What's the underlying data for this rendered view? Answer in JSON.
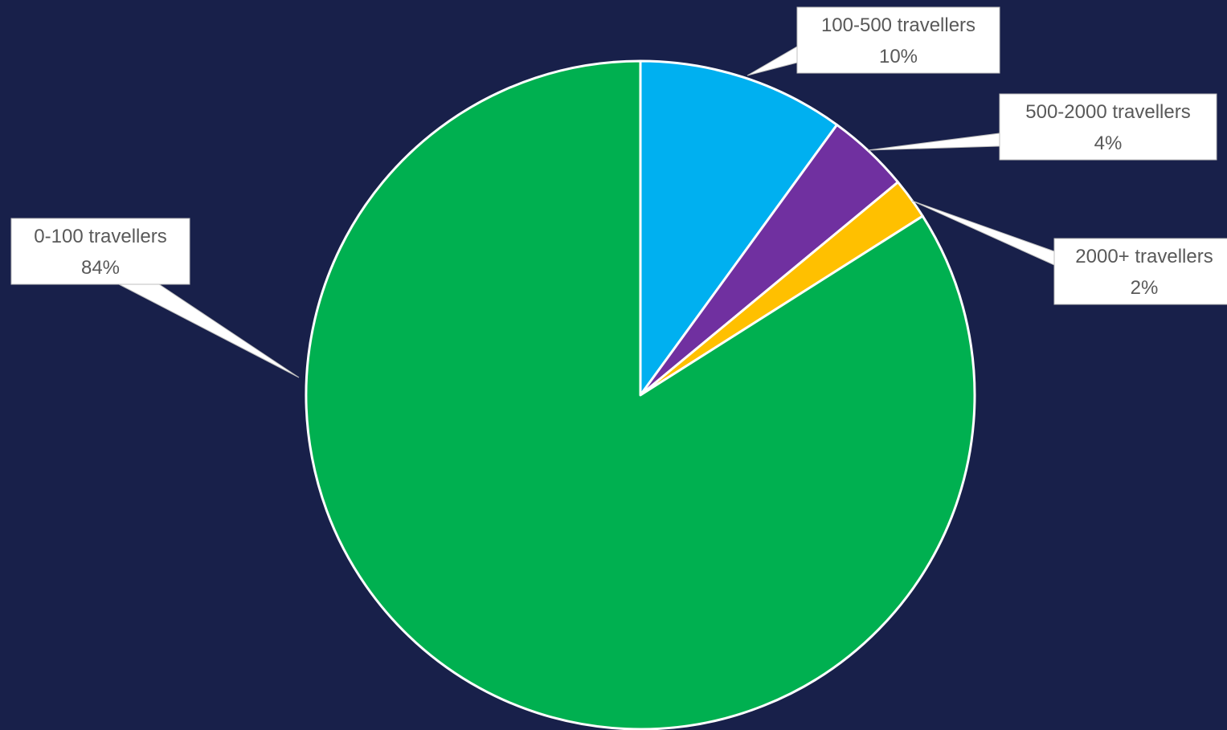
{
  "chart_data": {
    "type": "pie",
    "title": "",
    "start_angle_deg": 0,
    "direction": "clockwise",
    "slices": [
      {
        "name": "100-500 travellers",
        "value": 10,
        "label": "10%",
        "color": "#00b0f0"
      },
      {
        "name": "500-2000 travellers",
        "value": 4,
        "label": "4%",
        "color": "#7030a0"
      },
      {
        "name": "2000+ travellers",
        "value": 2,
        "label": "2%",
        "color": "#ffc000"
      },
      {
        "name": "0-100 travellers",
        "value": 84,
        "label": "84%",
        "color": "#00b050"
      }
    ],
    "slice_border_color": "#ffffff",
    "label_box_color": "#ffffff",
    "label_text_color": "#595959",
    "background_color": "#18204a",
    "legend": "none",
    "data_labels": "callouts"
  }
}
